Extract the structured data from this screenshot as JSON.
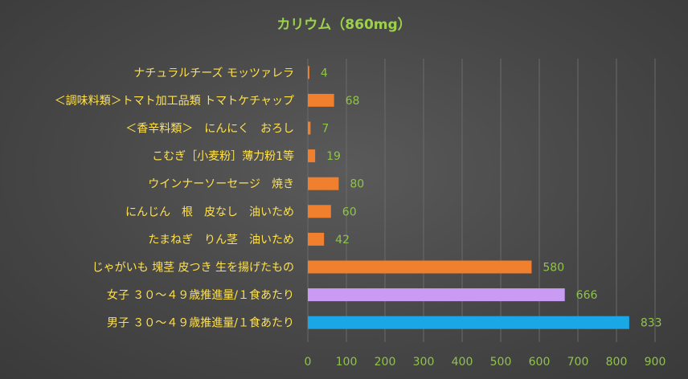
{
  "chart_data": {
    "type": "bar",
    "orientation": "horizontal",
    "title": "カリウム（860mg）",
    "categories": [
      "ナチュラルチーズ モッツァレラ",
      "＜調味料類＞トマト加工品類 トマトケチャップ",
      "＜香辛料類＞　にんにく　おろし",
      "こむぎ［小麦粉］薄力粉1等",
      "ウインナーソーセージ　焼き",
      "にんじん　根　皮なし　油いため",
      "たまねぎ　りん茎　油いため",
      "じゃがいも 塊茎 皮つき 生を揚げたもの",
      "女子 ３０～４９歳推進量/１食あたり",
      "男子 ３０～４９歳推進量/１食あたり"
    ],
    "values": [
      4,
      68,
      7,
      19,
      80,
      60,
      42,
      580,
      666,
      833
    ],
    "bar_colors": [
      "#f07f2e",
      "#f07f2e",
      "#f07f2e",
      "#f07f2e",
      "#f07f2e",
      "#f07f2e",
      "#f07f2e",
      "#f07f2e",
      "#c99bf2",
      "#1aa7e6"
    ],
    "xlim": [
      0,
      900
    ],
    "xticks": [
      0,
      100,
      200,
      300,
      400,
      500,
      600,
      700,
      800,
      900
    ],
    "grid": true,
    "legend": "none",
    "xlabel": "",
    "ylabel": ""
  }
}
